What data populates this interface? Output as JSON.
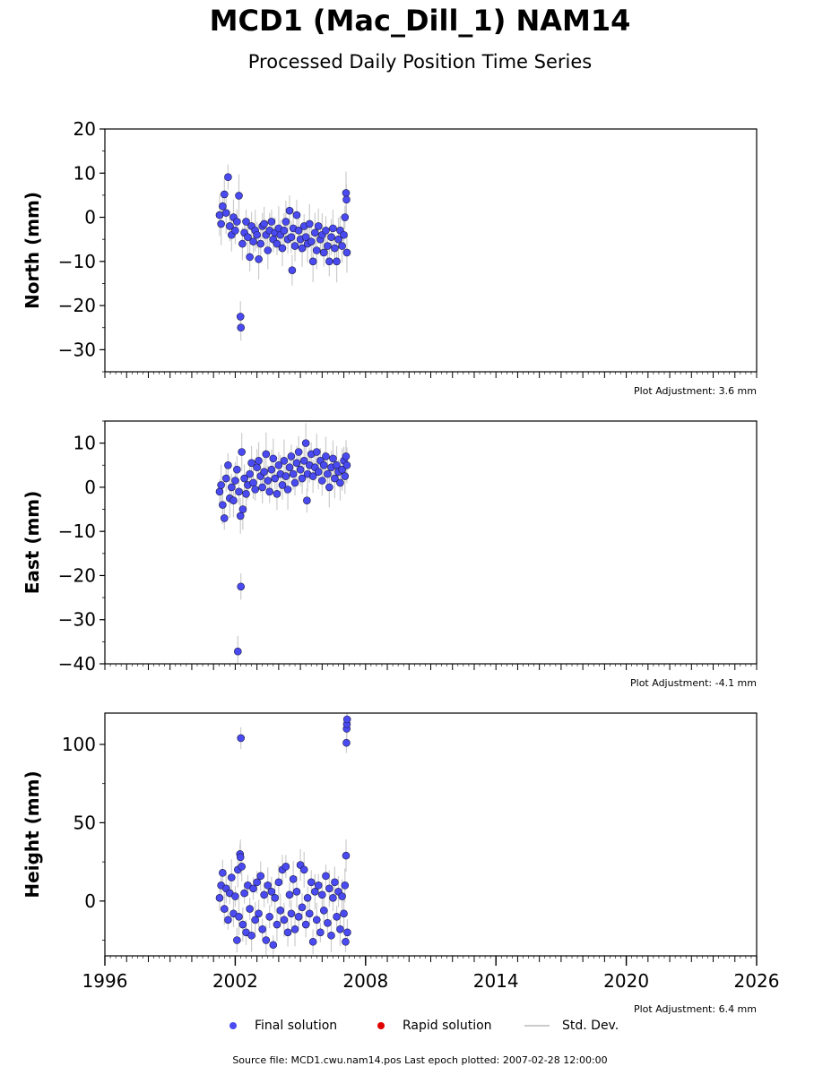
{
  "title": "MCD1 (Mac_Dill_1) NAM14",
  "subtitle": "Processed Daily Position Time Series",
  "footer": "Source file: MCD1.cwu.nam14.pos  Last epoch plotted: 2007-02-28 12:00:00",
  "legend": {
    "final": "Final solution",
    "rapid": "Rapid solution",
    "std": "Std. Dev."
  },
  "colors": {
    "final": "#4a4af2",
    "rapid": "#e00000",
    "std": "#cccccc"
  },
  "chart_data": [
    {
      "type": "scatter",
      "ylabel": "North (mm)",
      "xlim": [
        1996,
        2026
      ],
      "ylim": [
        -35,
        20
      ],
      "yticks": [
        20,
        10,
        0,
        -10,
        -20,
        -30
      ],
      "xticks": [],
      "adjustment": "Plot Adjustment: 3.6 mm",
      "series": [
        {
          "name": "Final solution",
          "points": [
            [
              2001.28,
              0.5
            ],
            [
              2001.35,
              -1.5
            ],
            [
              2001.42,
              2.5
            ],
            [
              2001.5,
              5.2
            ],
            [
              2001.58,
              1.0
            ],
            [
              2001.67,
              9.1
            ],
            [
              2001.75,
              -2.0
            ],
            [
              2001.83,
              -4.0
            ],
            [
              2001.92,
              0.0
            ],
            [
              2002.0,
              -3.0
            ],
            [
              2002.08,
              -1.0
            ],
            [
              2002.17,
              4.9
            ],
            [
              2002.24,
              -22.5
            ],
            [
              2002.26,
              -25.0
            ],
            [
              2002.33,
              -6.0
            ],
            [
              2002.42,
              -3.5
            ],
            [
              2002.5,
              -1.0
            ],
            [
              2002.58,
              -4.5
            ],
            [
              2002.67,
              -9.0
            ],
            [
              2002.75,
              -2.0
            ],
            [
              2002.83,
              -5.5
            ],
            [
              2002.92,
              -3.0
            ],
            [
              2003.0,
              -4.0
            ],
            [
              2003.08,
              -9.5
            ],
            [
              2003.17,
              -6.0
            ],
            [
              2003.25,
              -2.0
            ],
            [
              2003.33,
              -1.5
            ],
            [
              2003.42,
              -4.0
            ],
            [
              2003.5,
              -7.5
            ],
            [
              2003.58,
              -3.0
            ],
            [
              2003.67,
              -1.0
            ],
            [
              2003.75,
              -5.0
            ],
            [
              2003.83,
              -3.5
            ],
            [
              2003.92,
              -6.0
            ],
            [
              2004.0,
              -2.5
            ],
            [
              2004.08,
              -4.0
            ],
            [
              2004.17,
              -7.0
            ],
            [
              2004.25,
              -3.0
            ],
            [
              2004.33,
              -1.0
            ],
            [
              2004.42,
              -5.0
            ],
            [
              2004.5,
              1.5
            ],
            [
              2004.58,
              -4.5
            ],
            [
              2004.62,
              -12.0
            ],
            [
              2004.67,
              -2.5
            ],
            [
              2004.75,
              -6.5
            ],
            [
              2004.83,
              0.5
            ],
            [
              2004.92,
              -3.0
            ],
            [
              2005.0,
              -5.0
            ],
            [
              2005.08,
              -7.0
            ],
            [
              2005.17,
              -2.0
            ],
            [
              2005.25,
              -4.5
            ],
            [
              2005.33,
              -6.0
            ],
            [
              2005.42,
              -1.5
            ],
            [
              2005.5,
              -5.5
            ],
            [
              2005.58,
              -10.0
            ],
            [
              2005.67,
              -3.5
            ],
            [
              2005.75,
              -7.5
            ],
            [
              2005.83,
              -2.0
            ],
            [
              2005.92,
              -5.0
            ],
            [
              2006.0,
              -4.0
            ],
            [
              2006.08,
              -8.0
            ],
            [
              2006.17,
              -3.0
            ],
            [
              2006.25,
              -6.5
            ],
            [
              2006.33,
              -10.0
            ],
            [
              2006.42,
              -4.5
            ],
            [
              2006.5,
              -2.5
            ],
            [
              2006.58,
              -7.0
            ],
            [
              2006.67,
              -10.0
            ],
            [
              2006.75,
              -5.0
            ],
            [
              2006.83,
              -3.0
            ],
            [
              2006.92,
              -6.5
            ],
            [
              2007.0,
              -4.0
            ],
            [
              2007.05,
              0.0
            ],
            [
              2007.1,
              5.5
            ],
            [
              2007.12,
              4.0
            ],
            [
              2007.14,
              -8.0
            ]
          ]
        }
      ]
    },
    {
      "type": "scatter",
      "ylabel": "East (mm)",
      "xlim": [
        1996,
        2026
      ],
      "ylim": [
        -40,
        15
      ],
      "yticks": [
        10,
        0,
        -10,
        -20,
        -30,
        -40
      ],
      "xticks": [],
      "adjustment": "Plot Adjustment: -4.1 mm",
      "series": [
        {
          "name": "Final solution",
          "points": [
            [
              2001.28,
              -1.0
            ],
            [
              2001.35,
              0.5
            ],
            [
              2001.42,
              -4.0
            ],
            [
              2001.5,
              -7.0
            ],
            [
              2001.58,
              2.0
            ],
            [
              2001.67,
              5.0
            ],
            [
              2001.75,
              -2.5
            ],
            [
              2001.83,
              0.0
            ],
            [
              2001.92,
              -3.0
            ],
            [
              2002.0,
              1.5
            ],
            [
              2002.08,
              4.0
            ],
            [
              2002.12,
              -37.2
            ],
            [
              2002.17,
              -1.0
            ],
            [
              2002.24,
              -6.5
            ],
            [
              2002.26,
              -22.5
            ],
            [
              2002.3,
              8.0
            ],
            [
              2002.35,
              -5.0
            ],
            [
              2002.42,
              2.0
            ],
            [
              2002.5,
              -1.5
            ],
            [
              2002.58,
              0.5
            ],
            [
              2002.67,
              3.0
            ],
            [
              2002.75,
              5.5
            ],
            [
              2002.83,
              1.0
            ],
            [
              2002.92,
              -0.5
            ],
            [
              2003.0,
              4.5
            ],
            [
              2003.08,
              6.0
            ],
            [
              2003.17,
              2.5
            ],
            [
              2003.25,
              0.0
            ],
            [
              2003.33,
              3.5
            ],
            [
              2003.42,
              7.5
            ],
            [
              2003.5,
              1.5
            ],
            [
              2003.58,
              -1.0
            ],
            [
              2003.67,
              4.0
            ],
            [
              2003.75,
              6.5
            ],
            [
              2003.83,
              2.0
            ],
            [
              2003.92,
              -1.5
            ],
            [
              2004.0,
              5.0
            ],
            [
              2004.08,
              3.0
            ],
            [
              2004.17,
              0.5
            ],
            [
              2004.25,
              6.0
            ],
            [
              2004.33,
              2.5
            ],
            [
              2004.42,
              -0.5
            ],
            [
              2004.5,
              4.5
            ],
            [
              2004.58,
              7.0
            ],
            [
              2004.67,
              3.0
            ],
            [
              2004.75,
              1.0
            ],
            [
              2004.83,
              5.5
            ],
            [
              2004.92,
              8.0
            ],
            [
              2005.0,
              4.0
            ],
            [
              2005.08,
              2.0
            ],
            [
              2005.17,
              6.0
            ],
            [
              2005.25,
              10.0
            ],
            [
              2005.3,
              -3.0
            ],
            [
              2005.33,
              3.0
            ],
            [
              2005.42,
              5.0
            ],
            [
              2005.5,
              7.5
            ],
            [
              2005.58,
              2.5
            ],
            [
              2005.67,
              4.5
            ],
            [
              2005.75,
              8.0
            ],
            [
              2005.83,
              3.5
            ],
            [
              2005.92,
              6.0
            ],
            [
              2006.0,
              1.5
            ],
            [
              2006.08,
              5.0
            ],
            [
              2006.17,
              7.0
            ],
            [
              2006.25,
              3.0
            ],
            [
              2006.33,
              0.0
            ],
            [
              2006.42,
              4.5
            ],
            [
              2006.5,
              6.5
            ],
            [
              2006.58,
              2.0
            ],
            [
              2006.67,
              5.0
            ],
            [
              2006.75,
              3.5
            ],
            [
              2006.83,
              1.0
            ],
            [
              2006.92,
              4.0
            ],
            [
              2007.0,
              6.0
            ],
            [
              2007.05,
              2.5
            ],
            [
              2007.1,
              7.0
            ],
            [
              2007.14,
              5.0
            ]
          ]
        }
      ]
    },
    {
      "type": "scatter",
      "ylabel": "Height (mm)",
      "xlim": [
        1996,
        2026
      ],
      "ylim": [
        -35,
        120
      ],
      "yticks": [
        100,
        50,
        0
      ],
      "xticks": [
        1996,
        2002,
        2008,
        2014,
        2020,
        2026
      ],
      "adjustment": "Plot Adjustment: 6.4 mm",
      "series": [
        {
          "name": "Final solution",
          "points": [
            [
              2001.28,
              2.0
            ],
            [
              2001.35,
              10.0
            ],
            [
              2001.42,
              18.0
            ],
            [
              2001.5,
              -5.0
            ],
            [
              2001.58,
              8.0
            ],
            [
              2001.67,
              -12.0
            ],
            [
              2001.75,
              5.0
            ],
            [
              2001.83,
              15.0
            ],
            [
              2001.92,
              -8.0
            ],
            [
              2002.0,
              3.0
            ],
            [
              2002.08,
              -25.0
            ],
            [
              2002.12,
              20.0
            ],
            [
              2002.17,
              -10.0
            ],
            [
              2002.22,
              30.0
            ],
            [
              2002.24,
              28.0
            ],
            [
              2002.26,
              104.0
            ],
            [
              2002.3,
              22.0
            ],
            [
              2002.35,
              -15.0
            ],
            [
              2002.42,
              5.0
            ],
            [
              2002.5,
              -20.0
            ],
            [
              2002.58,
              10.0
            ],
            [
              2002.67,
              -5.0
            ],
            [
              2002.75,
              -22.0
            ],
            [
              2002.83,
              8.0
            ],
            [
              2002.92,
              -12.0
            ],
            [
              2003.0,
              12.0
            ],
            [
              2003.08,
              -8.0
            ],
            [
              2003.17,
              16.0
            ],
            [
              2003.25,
              -18.0
            ],
            [
              2003.33,
              4.0
            ],
            [
              2003.42,
              -25.0
            ],
            [
              2003.5,
              10.0
            ],
            [
              2003.58,
              -10.0
            ],
            [
              2003.67,
              6.0
            ],
            [
              2003.75,
              -28.0
            ],
            [
              2003.83,
              2.0
            ],
            [
              2003.92,
              -15.0
            ],
            [
              2004.0,
              12.0
            ],
            [
              2004.08,
              -6.0
            ],
            [
              2004.17,
              20.0
            ],
            [
              2004.25,
              -12.0
            ],
            [
              2004.33,
              22.0
            ],
            [
              2004.42,
              -20.0
            ],
            [
              2004.5,
              4.0
            ],
            [
              2004.58,
              -8.0
            ],
            [
              2004.67,
              14.0
            ],
            [
              2004.75,
              -18.0
            ],
            [
              2004.83,
              6.0
            ],
            [
              2004.92,
              -10.0
            ],
            [
              2005.0,
              23.0
            ],
            [
              2005.08,
              -4.0
            ],
            [
              2005.17,
              20.0
            ],
            [
              2005.25,
              -15.0
            ],
            [
              2005.33,
              2.0
            ],
            [
              2005.42,
              -8.0
            ],
            [
              2005.5,
              12.0
            ],
            [
              2005.58,
              -26.0
            ],
            [
              2005.67,
              6.0
            ],
            [
              2005.75,
              -12.0
            ],
            [
              2005.83,
              10.0
            ],
            [
              2005.92,
              -20.0
            ],
            [
              2006.0,
              4.0
            ],
            [
              2006.08,
              -6.0
            ],
            [
              2006.17,
              16.0
            ],
            [
              2006.25,
              -14.0
            ],
            [
              2006.33,
              8.0
            ],
            [
              2006.42,
              -22.0
            ],
            [
              2006.5,
              2.0
            ],
            [
              2006.58,
              12.0
            ],
            [
              2006.67,
              -10.0
            ],
            [
              2006.75,
              6.0
            ],
            [
              2006.83,
              -18.0
            ],
            [
              2006.92,
              3.0
            ],
            [
              2007.0,
              -8.0
            ],
            [
              2007.05,
              10.0
            ],
            [
              2007.08,
              -26.0
            ],
            [
              2007.1,
              29.0
            ],
            [
              2007.12,
              101.0
            ],
            [
              2007.13,
              110.0
            ],
            [
              2007.14,
              113.0
            ],
            [
              2007.15,
              116.0
            ],
            [
              2007.16,
              -20.0
            ]
          ]
        }
      ]
    }
  ]
}
